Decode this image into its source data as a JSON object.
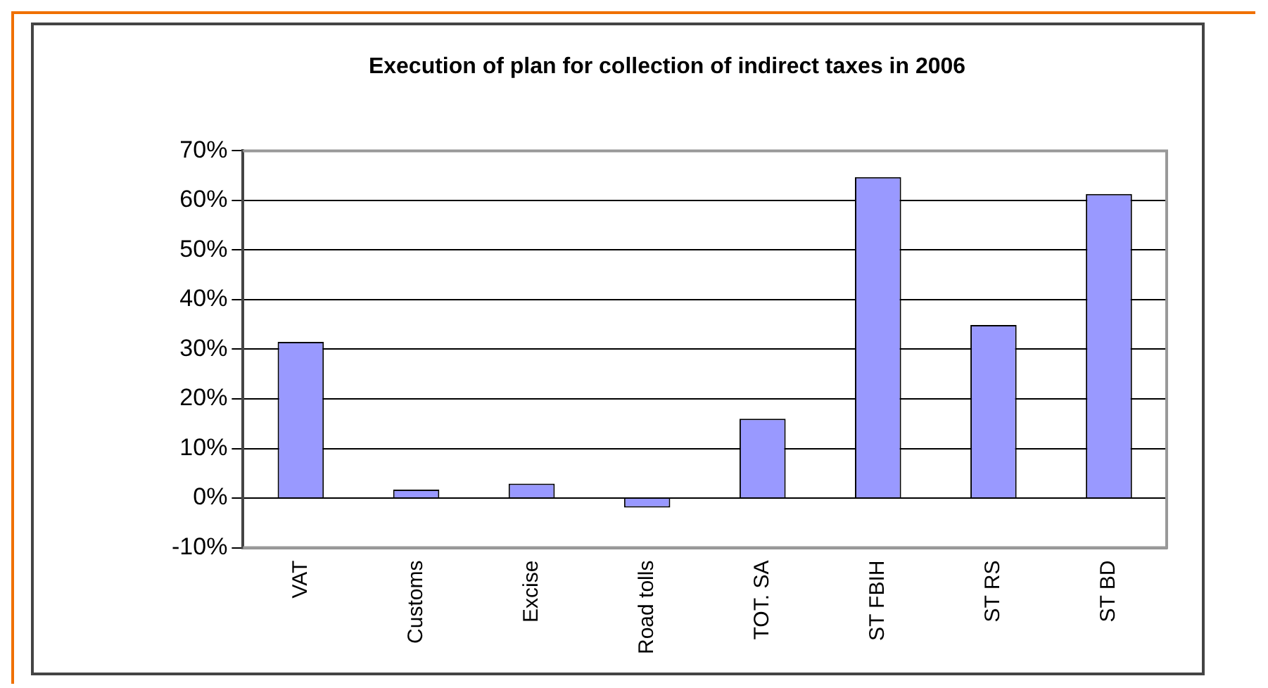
{
  "chart_data": {
    "type": "bar",
    "title": "Execution of plan for collection of indirect taxes in 2006",
    "categories": [
      "VAT",
      "Customs",
      "Excise",
      "Road tolls",
      "TOT. SA",
      "ST FBIH",
      "ST RS",
      "ST BD"
    ],
    "values": [
      31.5,
      1.7,
      2.9,
      -1.9,
      16,
      64.7,
      34.9,
      61.3
    ],
    "color": "#9999ff",
    "ylim": [
      -10,
      70
    ],
    "yticks": [
      {
        "value": -10,
        "label": "-10%"
      },
      {
        "value": 0,
        "label": "0%"
      },
      {
        "value": 10,
        "label": "10%"
      },
      {
        "value": 20,
        "label": "20%"
      },
      {
        "value": 30,
        "label": "30%"
      },
      {
        "value": 40,
        "label": "40%"
      },
      {
        "value": 50,
        "label": "50%"
      },
      {
        "value": 60,
        "label": "60%"
      },
      {
        "value": 70,
        "label": "70%"
      }
    ],
    "grid": "y",
    "legend": false
  }
}
